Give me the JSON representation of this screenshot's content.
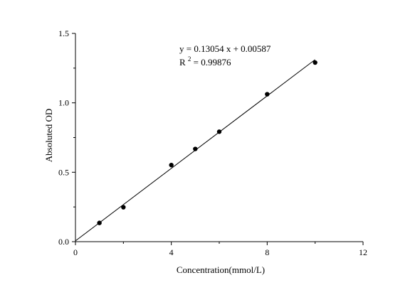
{
  "chart_data": {
    "type": "scatter",
    "title": "",
    "xlabel": "Concentration(mmol/L)",
    "ylabel": "Absoluted OD",
    "xlim": [
      0,
      12
    ],
    "ylim": [
      0,
      1.5
    ],
    "xticks": [
      0,
      4,
      8,
      12
    ],
    "xtick_labels": [
      "0",
      "4",
      "8",
      "12"
    ],
    "yticks": [
      0.0,
      0.5,
      1.0,
      1.5
    ],
    "ytick_labels": [
      "0.0",
      "0.5",
      "1.0",
      "1.5"
    ],
    "grid": false,
    "series": [
      {
        "x": [
          1,
          2,
          4,
          5,
          6,
          8,
          10
        ],
        "y": [
          0.135,
          0.248,
          0.552,
          0.668,
          0.792,
          1.062,
          1.29
        ]
      }
    ],
    "fit_line": {
      "slope": 0.13054,
      "intercept": 0.00587,
      "x_range": [
        0,
        10
      ]
    },
    "annotations": {
      "equation": "y = 0.13054 x + 0.00587",
      "r2_prefix": "R",
      "r2_sup": "2",
      "r2_suffix": " = 0.99876"
    },
    "colors": {
      "points": "#000000",
      "line": "#000000",
      "axes": "#000000"
    }
  }
}
